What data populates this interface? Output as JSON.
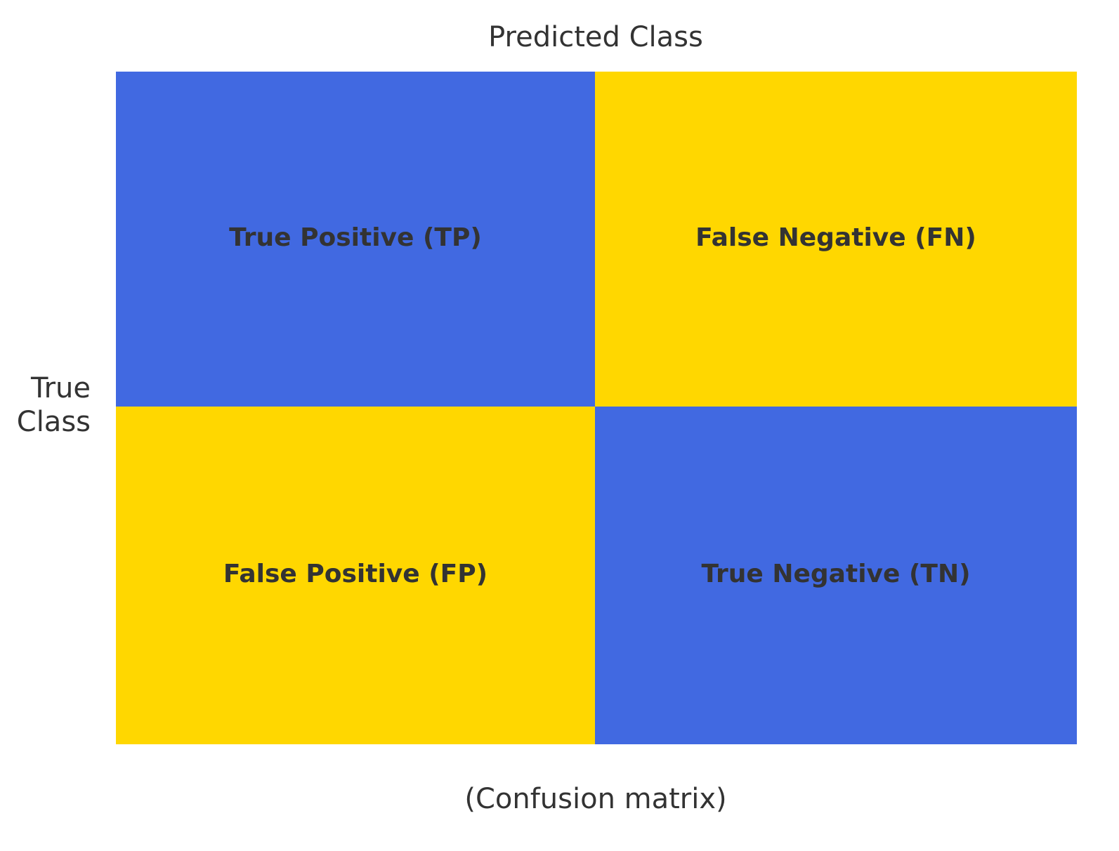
{
  "title": "Predicted Class",
  "row_label": {
    "lines": [
      "True",
      "Class"
    ]
  },
  "caption": "(Confusion matrix)",
  "matrix": {
    "rows": [
      [
        "True Positive (TP)",
        "False Negative (FN)"
      ],
      [
        "False Positive (FP)",
        "True Negative (TN)"
      ]
    ]
  }
}
